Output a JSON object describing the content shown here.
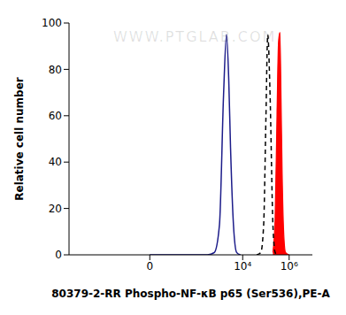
{
  "chart_data": {
    "type": "histogram",
    "annotations": [
      "WWW.PTGLAB.COM"
    ],
    "x_label": "80379-2-RR Phospho-NF-κB p65 (Ser536),PE-A",
    "y_label": "Relative cell number",
    "log": "x",
    "xlim": [
      -3000,
      10000000
    ],
    "xticks": [
      {
        "value": 0,
        "label": "0"
      },
      {
        "value": 10000,
        "label": "10⁴"
      },
      {
        "value": 1000000,
        "label": "10⁶"
      }
    ],
    "ylim": [
      0,
      100
    ],
    "yticks": [
      0,
      20,
      40,
      60,
      80,
      100
    ],
    "grid": false,
    "x": [
      0,
      300,
      600,
      1000,
      1500,
      2000,
      2500,
      3000,
      4000,
      5500,
      8000,
      20000,
      40000,
      60000,
      80000,
      100000,
      120000,
      150000,
      200000,
      250000,
      300000,
      350000,
      400000,
      450000,
      500000,
      600000,
      700000,
      1000000
    ],
    "series": [
      {
        "type": "line",
        "color": "#1c1c8a",
        "line_style": "solid",
        "values": [
          0,
          0,
          1,
          13,
          69,
          95,
          76,
          46,
          13,
          1,
          0,
          null,
          null,
          null,
          null,
          null,
          null,
          null,
          null,
          null,
          null,
          null,
          null,
          null,
          null,
          null,
          null,
          null
        ]
      },
      {
        "type": "line",
        "color": "#000000",
        "line_style": "dashed",
        "values": [
          null,
          null,
          null,
          null,
          null,
          null,
          null,
          null,
          null,
          null,
          null,
          null,
          0,
          1,
          13,
          59,
          95,
          70,
          13,
          1,
          0,
          null,
          null,
          null,
          null,
          null,
          null,
          null
        ]
      },
      {
        "type": "area",
        "color": "#ff0000",
        "line_style": "solid",
        "values": [
          null,
          null,
          null,
          null,
          null,
          null,
          null,
          null,
          null,
          null,
          null,
          null,
          null,
          null,
          null,
          null,
          null,
          null,
          1,
          16,
          60,
          92,
          96,
          66,
          35,
          7,
          1,
          0
        ]
      }
    ]
  }
}
